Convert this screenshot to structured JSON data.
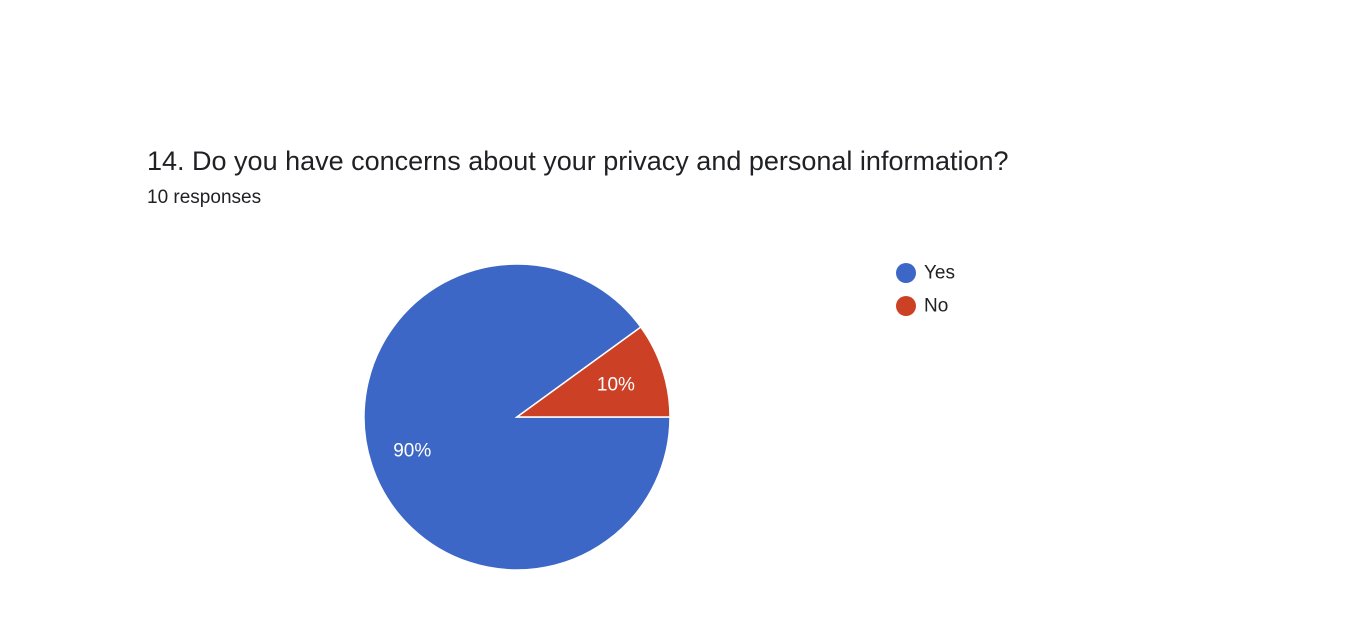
{
  "question": {
    "title": "14. Do you have concerns about your privacy and personal information?",
    "responses": "10 responses"
  },
  "chart_data": {
    "type": "pie",
    "categories": [
      "Yes",
      "No"
    ],
    "values": [
      9,
      1
    ],
    "percent_labels": [
      "90%",
      "10%"
    ],
    "colors": [
      "#3d67c6",
      "#cc4125"
    ],
    "legend_position": "right"
  }
}
